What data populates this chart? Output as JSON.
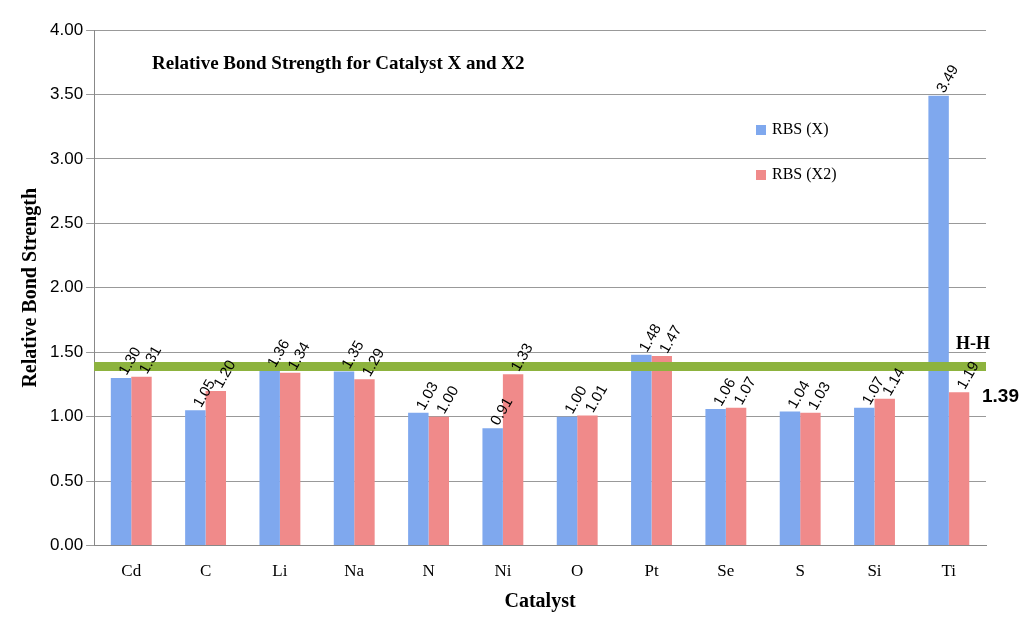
{
  "chart_data": {
    "type": "bar",
    "title": "Relative Bond Strength for Catalyst X and X2",
    "xlabel": "Catalyst",
    "ylabel": "Relative Bond Strength",
    "categories": [
      "Cd",
      "C",
      "Li",
      "Na",
      "N",
      "Ni",
      "O",
      "Pt",
      "Se",
      "S",
      "Si",
      "Ti"
    ],
    "series": [
      {
        "name": "RBS (X)",
        "color": "#7fa8ee",
        "values": [
          1.3,
          1.05,
          1.36,
          1.35,
          1.03,
          0.91,
          1.0,
          1.48,
          1.06,
          1.04,
          1.07,
          3.49
        ],
        "value_labels": [
          "1.30",
          "1.05",
          "1.36",
          "1.35",
          "1.03",
          "0.91",
          "1.00",
          "1.48",
          "1.06",
          "1.04",
          "1.07",
          "3.49"
        ]
      },
      {
        "name": "RBS (X2)",
        "color": "#f08a8a",
        "values": [
          1.31,
          1.2,
          1.34,
          1.29,
          1.0,
          1.33,
          1.01,
          1.47,
          1.07,
          1.03,
          1.14,
          1.19
        ],
        "value_labels": [
          "1.31",
          "1.20",
          "1.34",
          "1.29",
          "1.00",
          "1.33",
          "1.01",
          "1.47",
          "1.07",
          "1.03",
          "1.14",
          "1.19"
        ]
      }
    ],
    "ylim": [
      0,
      4
    ],
    "yticks": [
      {
        "value": 0,
        "label": "0.00"
      },
      {
        "value": 0.5,
        "label": "0.50"
      },
      {
        "value": 1,
        "label": "1.00"
      },
      {
        "value": 1.5,
        "label": "1.50"
      },
      {
        "value": 2,
        "label": "2.00"
      },
      {
        "value": 2.5,
        "label": "2.50"
      },
      {
        "value": 3,
        "label": "3.00"
      },
      {
        "value": 3.5,
        "label": "3.50"
      },
      {
        "value": 4,
        "label": "4.00"
      }
    ],
    "ref_lines": [
      {
        "axis": "y",
        "value": 1.39,
        "label": "H-H",
        "color": "#8db33e"
      }
    ],
    "annotations": [
      "1.39"
    ],
    "grid": "y",
    "legend": "top right"
  }
}
